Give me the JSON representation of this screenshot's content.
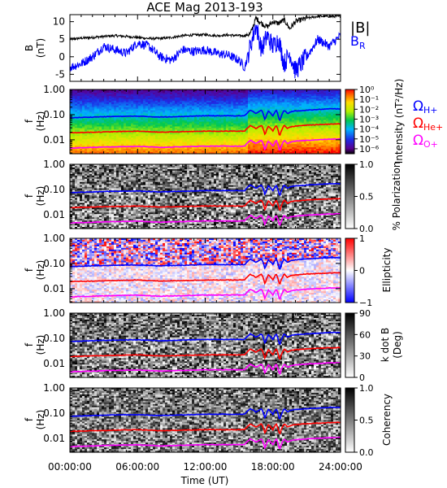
{
  "chart_data": {
    "type": "multi-panel spectrogram",
    "title": "ACE Mag 2013-193",
    "xlabel": "Time (UT)",
    "x_tick_labels": [
      "00:00:00",
      "06:00:00",
      "12:00:00",
      "18:00:00",
      "24:00:00"
    ],
    "x_ticks_hours": [
      0,
      6,
      12,
      18,
      24
    ],
    "xlim_hours": [
      0,
      24
    ],
    "panels": [
      {
        "name": "magnetic-field",
        "type": "line",
        "ylabel_top": "B",
        "ylabel_bottom": "(nT)",
        "ylim": [
          -7,
          12
        ],
        "y_ticks": [
          10,
          5,
          0,
          -5
        ],
        "legend": [
          {
            "label": "|B|",
            "color": "#000000"
          },
          {
            "label": "B",
            "sub": "R",
            "color": "#0000ff"
          }
        ],
        "series": [
          {
            "name": "|B|",
            "color": "#000000",
            "x": [
              0,
              1,
              2,
              3,
              4,
              5,
              6,
              7,
              8,
              9,
              10,
              11,
              12,
              13,
              14,
              15,
              15.5,
              16,
              16.5,
              17,
              17.5,
              18,
              18.5,
              19,
              19.5,
              20,
              21,
              22,
              23,
              24
            ],
            "y": [
              5.0,
              5.3,
              5.5,
              5.8,
              6.0,
              5.8,
              5.5,
              5.2,
              5.2,
              5.5,
              6.0,
              6.2,
              6.3,
              6.0,
              6.2,
              6.0,
              6.0,
              6.5,
              11.0,
              9.5,
              8.5,
              10.0,
              9.5,
              10.5,
              8.0,
              10.0,
              11.0,
              11.5,
              11.5,
              11.5
            ]
          },
          {
            "name": "BR",
            "color": "#0000ff",
            "x": [
              0,
              1,
              2,
              3,
              4,
              5,
              6,
              7,
              8,
              9,
              10,
              11,
              12,
              13,
              14,
              15,
              15.5,
              16,
              16.5,
              17,
              17.5,
              18,
              18.5,
              19,
              19.5,
              20,
              21,
              22,
              23,
              24
            ],
            "y": [
              -3.0,
              -2.0,
              0.0,
              3.0,
              2.0,
              1.0,
              4.0,
              3.0,
              0.0,
              -1.0,
              2.0,
              1.5,
              2.0,
              1.0,
              0.5,
              -1.0,
              -3.0,
              3.0,
              9.0,
              2.0,
              6.0,
              3.0,
              5.0,
              -2.0,
              1.0,
              -4.0,
              0.0,
              5.0,
              3.0,
              6.0
            ]
          }
        ]
      },
      {
        "name": "intensity",
        "type": "heatmap",
        "ylabel_top": "f",
        "ylabel_bottom": "(Hz)",
        "y_scale": "log",
        "ylim": [
          0.0028,
          1.0
        ],
        "y_tick_labels": [
          "1.00",
          "0.10",
          "0.01"
        ],
        "colorbar": {
          "label": "Intensity (nT²/Hz)",
          "colormap": "rainbow",
          "tick_labels": [
            "10⁰",
            "10⁻¹",
            "10⁻²",
            "10⁻³",
            "10⁻⁴",
            "10⁻⁵",
            "10⁻⁶"
          ],
          "range": [
            -6.5,
            0
          ]
        },
        "gyro_legend": [
          {
            "label": "Ω",
            "sub": "H+",
            "color": "#0000ff"
          },
          {
            "label": "Ω",
            "sub": "He+",
            "color": "#ff0000"
          },
          {
            "label": "Ω",
            "sub": "O+",
            "color": "#ff00ff"
          }
        ]
      },
      {
        "name": "polarization",
        "type": "heatmap",
        "ylabel_top": "f",
        "ylabel_bottom": "(Hz)",
        "y_scale": "log",
        "ylim": [
          0.0028,
          1.0
        ],
        "y_tick_labels": [
          "1.00",
          "0.10",
          "0.01"
        ],
        "colorbar": {
          "label": "% Polarization",
          "colormap": "gray",
          "tick_labels": [
            "1.0",
            "0.5",
            "0.0"
          ],
          "range": [
            0,
            1
          ]
        }
      },
      {
        "name": "ellipticity",
        "type": "heatmap",
        "ylabel_top": "f",
        "ylabel_bottom": "(Hz)",
        "y_scale": "log",
        "ylim": [
          0.0028,
          1.0
        ],
        "y_tick_labels": [
          "1.00",
          "0.10",
          "0.01"
        ],
        "colorbar": {
          "label": "Ellipticity",
          "colormap": "blue-white-red",
          "tick_labels": [
            "1",
            "0",
            "−1"
          ],
          "range": [
            -1,
            1
          ]
        }
      },
      {
        "name": "k-dot-b",
        "type": "heatmap",
        "ylabel_top": "f",
        "ylabel_bottom": "(Hz)",
        "y_scale": "log",
        "ylim": [
          0.0028,
          1.0
        ],
        "y_tick_labels": [
          "1.00",
          "0.10",
          "0.01"
        ],
        "colorbar": {
          "label_top": "k dot B",
          "label_bottom": "(Deg)",
          "colormap": "gray",
          "tick_labels": [
            "90",
            "60",
            "30",
            "0"
          ],
          "range": [
            0,
            90
          ]
        }
      },
      {
        "name": "coherency",
        "type": "heatmap",
        "ylabel_top": "f",
        "ylabel_bottom": "(Hz)",
        "y_scale": "log",
        "ylim": [
          0.0028,
          1.0
        ],
        "y_tick_labels": [
          "1.00",
          "0.10",
          "0.01"
        ],
        "colorbar": {
          "label": "Coherency",
          "colormap": "gray",
          "tick_labels": [
            "1.0",
            "0.5",
            "0.0"
          ],
          "range": [
            0,
            1
          ]
        }
      }
    ],
    "gyrofrequency_lines": [
      {
        "name": "H+",
        "color": "#0000ff",
        "x": [
          0,
          2,
          4,
          6,
          8,
          10,
          12,
          14,
          15.5,
          16,
          16.5,
          17,
          17.3,
          17.6,
          18,
          18.3,
          18.6,
          19,
          19.3,
          19.6,
          20,
          21,
          22,
          23,
          24
        ],
        "f": [
          0.075,
          0.08,
          0.085,
          0.087,
          0.08,
          0.085,
          0.09,
          0.09,
          0.09,
          0.15,
          0.11,
          0.15,
          0.06,
          0.14,
          0.09,
          0.15,
          0.05,
          0.15,
          0.11,
          0.13,
          0.14,
          0.15,
          0.16,
          0.17,
          0.17
        ]
      },
      {
        "name": "He+",
        "color": "#ff0000",
        "x": [
          0,
          2,
          4,
          6,
          8,
          10,
          12,
          14,
          15.5,
          16,
          16.5,
          17,
          17.3,
          17.6,
          18,
          18.3,
          18.6,
          19,
          19.3,
          19.6,
          20,
          21,
          22,
          23,
          24
        ],
        "f": [
          0.019,
          0.02,
          0.021,
          0.022,
          0.02,
          0.021,
          0.022,
          0.022,
          0.022,
          0.037,
          0.028,
          0.038,
          0.015,
          0.035,
          0.022,
          0.038,
          0.013,
          0.038,
          0.028,
          0.033,
          0.035,
          0.038,
          0.04,
          0.042,
          0.043
        ]
      },
      {
        "name": "O+",
        "color": "#ff00ff",
        "x": [
          0,
          2,
          4,
          6,
          8,
          10,
          12,
          14,
          15.5,
          16,
          16.5,
          17,
          17.3,
          17.6,
          18,
          18.3,
          18.6,
          19,
          19.3,
          19.6,
          20,
          21,
          22,
          23,
          24
        ],
        "f": [
          0.0047,
          0.005,
          0.0053,
          0.0055,
          0.005,
          0.0053,
          0.0056,
          0.0056,
          0.0056,
          0.0094,
          0.007,
          0.0095,
          0.0038,
          0.0088,
          0.0056,
          0.0095,
          0.0033,
          0.0095,
          0.007,
          0.0082,
          0.0088,
          0.0095,
          0.01,
          0.0106,
          0.0107
        ]
      }
    ]
  }
}
